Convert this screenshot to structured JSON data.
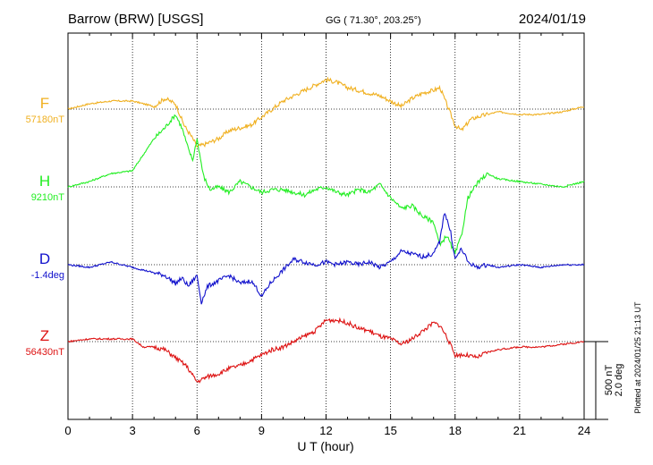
{
  "header": {
    "station": "Barrow (BRW)  [USGS]",
    "coords": "GG ( 71.30°, 203.25°)",
    "date": "2024/01/19"
  },
  "footer": {
    "plotted": "Plotted at 2024/01/25 21:13 UT"
  },
  "scale": {
    "nt": "500 nT",
    "deg": "2.0 deg"
  },
  "chart_data": {
    "type": "line",
    "xlabel": "U T (hour)",
    "xlim": [
      0,
      24
    ],
    "x_ticks": [
      "0",
      "3",
      "6",
      "9",
      "12",
      "15",
      "18",
      "21",
      "24"
    ],
    "grid": true,
    "series": [
      {
        "name": "F",
        "baseline_label": "57180nT",
        "unit": "nT",
        "color": "#f0b020",
        "points": [
          [
            0,
            0
          ],
          [
            1,
            10
          ],
          [
            2,
            15
          ],
          [
            3,
            15
          ],
          [
            4,
            5
          ],
          [
            4.5,
            20
          ],
          [
            5,
            10
          ],
          [
            5.4,
            -30
          ],
          [
            5.8,
            -55
          ],
          [
            6,
            -70
          ],
          [
            6.4,
            -65
          ],
          [
            7,
            -55
          ],
          [
            7.5,
            -40
          ],
          [
            8,
            -35
          ],
          [
            8.5,
            -30
          ],
          [
            9,
            -15
          ],
          [
            9.5,
            0
          ],
          [
            10,
            15
          ],
          [
            10.5,
            25
          ],
          [
            11,
            35
          ],
          [
            11.5,
            45
          ],
          [
            12,
            55
          ],
          [
            12.5,
            50
          ],
          [
            13,
            40
          ],
          [
            13.5,
            35
          ],
          [
            14,
            30
          ],
          [
            14.5,
            25
          ],
          [
            15,
            15
          ],
          [
            15.5,
            5
          ],
          [
            16,
            20
          ],
          [
            16.5,
            30
          ],
          [
            17,
            35
          ],
          [
            17.3,
            40
          ],
          [
            17.6,
            10
          ],
          [
            18,
            -30
          ],
          [
            18.3,
            -40
          ],
          [
            18.7,
            -20
          ],
          [
            19,
            -15
          ],
          [
            19.5,
            -10
          ],
          [
            20,
            -5
          ],
          [
            21,
            -10
          ],
          [
            22,
            -10
          ],
          [
            23,
            -5
          ],
          [
            24,
            5
          ]
        ]
      },
      {
        "name": "H",
        "baseline_label": "9210nT",
        "unit": "nT",
        "color": "#22ee22",
        "points": [
          [
            0,
            0
          ],
          [
            1,
            10
          ],
          [
            2,
            25
          ],
          [
            3,
            30
          ],
          [
            3.5,
            60
          ],
          [
            4,
            90
          ],
          [
            4.5,
            110
          ],
          [
            5,
            135
          ],
          [
            5.3,
            110
          ],
          [
            5.6,
            70
          ],
          [
            5.8,
            50
          ],
          [
            6,
            90
          ],
          [
            6.3,
            20
          ],
          [
            6.6,
            -5
          ],
          [
            7,
            0
          ],
          [
            7.5,
            -10
          ],
          [
            8,
            10
          ],
          [
            8.5,
            0
          ],
          [
            9,
            -10
          ],
          [
            9.5,
            -5
          ],
          [
            10,
            -5
          ],
          [
            10.5,
            -10
          ],
          [
            11,
            -15
          ],
          [
            11.5,
            -5
          ],
          [
            12,
            0
          ],
          [
            12.5,
            -10
          ],
          [
            13,
            -15
          ],
          [
            13.5,
            -5
          ],
          [
            14,
            -10
          ],
          [
            14.5,
            5
          ],
          [
            15,
            -20
          ],
          [
            15.5,
            -40
          ],
          [
            16,
            -35
          ],
          [
            16.5,
            -55
          ],
          [
            17,
            -65
          ],
          [
            17.3,
            -110
          ],
          [
            17.6,
            -90
          ],
          [
            18,
            -125
          ],
          [
            18.3,
            -90
          ],
          [
            18.6,
            -20
          ],
          [
            19,
            5
          ],
          [
            19.5,
            25
          ],
          [
            20,
            15
          ],
          [
            21,
            10
          ],
          [
            22,
            5
          ],
          [
            23,
            0
          ],
          [
            24,
            10
          ]
        ]
      },
      {
        "name": "D",
        "baseline_label": "-1.4deg",
        "unit": "deg",
        "color": "#1010cc",
        "points": [
          [
            0,
            0
          ],
          [
            1,
            -5
          ],
          [
            2,
            5
          ],
          [
            3,
            -5
          ],
          [
            3.5,
            -10
          ],
          [
            4,
            -15
          ],
          [
            4.5,
            -20
          ],
          [
            5,
            -35
          ],
          [
            5.3,
            -25
          ],
          [
            5.6,
            -40
          ],
          [
            6,
            -20
          ],
          [
            6.2,
            -70
          ],
          [
            6.5,
            -40
          ],
          [
            7,
            -30
          ],
          [
            7.5,
            -20
          ],
          [
            8,
            -35
          ],
          [
            8.5,
            -30
          ],
          [
            8.8,
            -45
          ],
          [
            9,
            -60
          ],
          [
            9.4,
            -35
          ],
          [
            10,
            -10
          ],
          [
            10.5,
            10
          ],
          [
            11,
            5
          ],
          [
            11.5,
            0
          ],
          [
            12,
            5
          ],
          [
            12.5,
            0
          ],
          [
            13,
            5
          ],
          [
            13.5,
            0
          ],
          [
            14,
            5
          ],
          [
            14.5,
            -5
          ],
          [
            15,
            5
          ],
          [
            15.5,
            25
          ],
          [
            16,
            20
          ],
          [
            16.5,
            15
          ],
          [
            17,
            20
          ],
          [
            17.3,
            45
          ],
          [
            17.5,
            100
          ],
          [
            17.8,
            60
          ],
          [
            18,
            10
          ],
          [
            18.3,
            30
          ],
          [
            18.6,
            5
          ],
          [
            19,
            -5
          ],
          [
            19.5,
            0
          ],
          [
            20,
            -5
          ],
          [
            21,
            0
          ],
          [
            22,
            -5
          ],
          [
            23,
            0
          ],
          [
            24,
            0
          ]
        ]
      },
      {
        "name": "Z",
        "baseline_label": "56430nT",
        "unit": "nT",
        "color": "#dd1111",
        "points": [
          [
            0,
            0
          ],
          [
            1,
            5
          ],
          [
            2,
            5
          ],
          [
            3,
            5
          ],
          [
            3.5,
            -10
          ],
          [
            4,
            -10
          ],
          [
            4.5,
            -15
          ],
          [
            5,
            -30
          ],
          [
            5.5,
            -45
          ],
          [
            6,
            -75
          ],
          [
            6.5,
            -65
          ],
          [
            7,
            -60
          ],
          [
            7.5,
            -50
          ],
          [
            8,
            -45
          ],
          [
            8.5,
            -35
          ],
          [
            9,
            -25
          ],
          [
            9.5,
            -15
          ],
          [
            10,
            -10
          ],
          [
            10.5,
            0
          ],
          [
            11,
            10
          ],
          [
            11.5,
            20
          ],
          [
            12,
            40
          ],
          [
            12.5,
            40
          ],
          [
            13,
            35
          ],
          [
            13.5,
            25
          ],
          [
            14,
            20
          ],
          [
            14.5,
            10
          ],
          [
            15,
            5
          ],
          [
            15.5,
            -5
          ],
          [
            16,
            5
          ],
          [
            16.5,
            20
          ],
          [
            17,
            35
          ],
          [
            17.3,
            30
          ],
          [
            17.6,
            10
          ],
          [
            18,
            -25
          ],
          [
            18.5,
            -25
          ],
          [
            19,
            -30
          ],
          [
            19.5,
            -20
          ],
          [
            20,
            -15
          ],
          [
            21,
            -10
          ],
          [
            22,
            -10
          ],
          [
            23,
            -5
          ],
          [
            24,
            0
          ]
        ]
      }
    ]
  }
}
